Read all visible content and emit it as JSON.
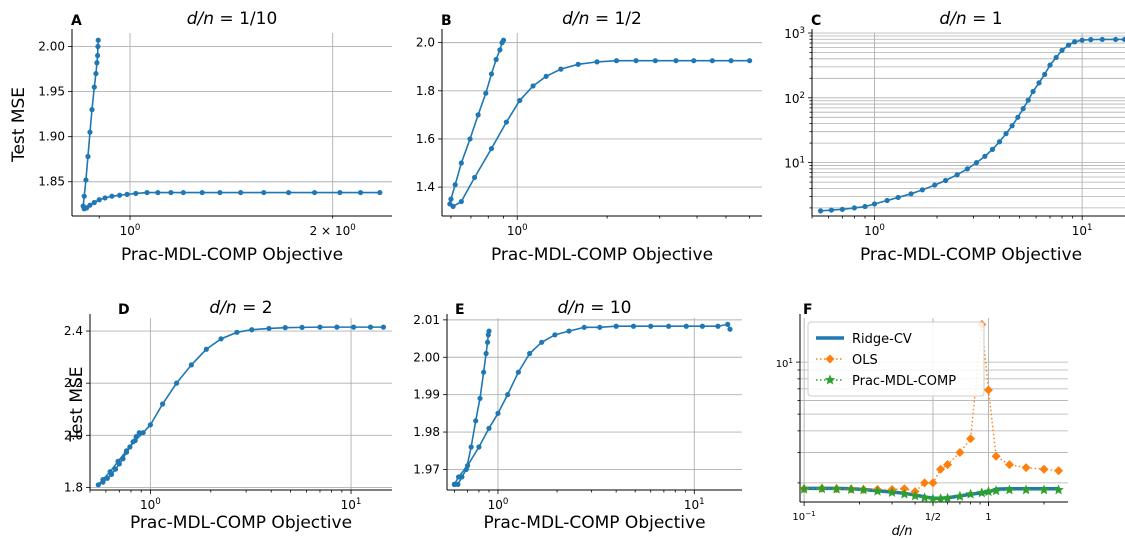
{
  "colors": {
    "blue": "#1f77b4",
    "orange": "#ff7f0e",
    "green": "#2ca02c",
    "grid": "#b0b0b0"
  },
  "chart_data": [
    {
      "panel": "A",
      "type": "line",
      "xscale": "log",
      "yscale": "linear",
      "title_prefix": "d/n",
      "title_suffix": " = 1/10",
      "xlabel": "Prac-MDL-COMP Objective",
      "ylabel": "Test MSE",
      "xlim": [
        0.82,
        2.45
      ],
      "ylim": [
        1.812,
        2.015
      ],
      "xticks": [
        {
          "v": 1,
          "b": "10",
          "e": "0"
        },
        {
          "v": 2,
          "pre": "2 × ",
          "b": "10",
          "e": "0"
        }
      ],
      "yticks": [
        1.85,
        1.9,
        1.95,
        2.0
      ],
      "ytick_labels": [
        "1.85",
        "1.90",
        "1.95",
        "2.00"
      ],
      "grid": true,
      "series": [
        {
          "x": [
            0.897,
            0.896,
            0.895,
            0.893,
            0.89,
            0.885,
            0.878,
            0.872,
            0.866,
            0.86,
            0.855,
            0.852,
            0.855,
            0.862,
            0.872,
            0.885,
            0.9,
            0.918,
            0.94,
            0.965,
            0.99,
            1.02,
            1.06,
            1.1,
            1.15,
            1.2,
            1.28,
            1.36,
            1.46,
            1.58,
            1.72,
            1.88,
            2.05,
            2.2,
            2.35
          ],
          "y": [
            2.007,
            2.0,
            1.99,
            1.982,
            1.97,
            1.955,
            1.93,
            1.905,
            1.878,
            1.852,
            1.834,
            1.823,
            1.82,
            1.821,
            1.824,
            1.827,
            1.83,
            1.832,
            1.834,
            1.835,
            1.836,
            1.837,
            1.838,
            1.838,
            1.838,
            1.838,
            1.838,
            1.838,
            1.838,
            1.838,
            1.838,
            1.838,
            1.838,
            1.838,
            1.838
          ]
        }
      ]
    },
    {
      "panel": "B",
      "type": "line",
      "xscale": "log",
      "yscale": "linear",
      "title_prefix": "d/n",
      "title_suffix": " = 1/2",
      "xlabel": "Prac-MDL-COMP Objective",
      "xlim": [
        0.56,
        6.6
      ],
      "ylim": [
        1.28,
        2.04
      ],
      "xticks": [
        {
          "v": 1,
          "b": "10",
          "e": "0"
        }
      ],
      "yticks": [
        1.4,
        1.6,
        1.8,
        2.0
      ],
      "ytick_labels": [
        "1.4",
        "1.6",
        "1.8",
        "2.0"
      ],
      "grid": true,
      "series": [
        {
          "x": [
            0.9,
            0.89,
            0.875,
            0.85,
            0.82,
            0.785,
            0.74,
            0.695,
            0.65,
            0.62,
            0.6,
            0.595,
            0.61,
            0.65,
            0.72,
            0.82,
            0.92,
            1.02,
            1.13,
            1.25,
            1.4,
            1.6,
            1.85,
            2.15,
            2.5,
            2.9,
            3.4,
            3.9,
            4.5,
            5.2,
            6.0
          ],
          "y": [
            2.01,
            2.0,
            1.97,
            1.93,
            1.87,
            1.79,
            1.7,
            1.6,
            1.5,
            1.41,
            1.35,
            1.33,
            1.32,
            1.34,
            1.44,
            1.56,
            1.67,
            1.76,
            1.82,
            1.86,
            1.89,
            1.91,
            1.92,
            1.925,
            1.925,
            1.925,
            1.925,
            1.925,
            1.925,
            1.925,
            1.925
          ]
        }
      ]
    },
    {
      "panel": "C",
      "type": "line",
      "xscale": "log",
      "yscale": "log",
      "title_prefix": "d/n",
      "title_suffix": " = 1",
      "xlabel": "Prac-MDL-COMP Objective",
      "xlim": [
        0.5,
        17
      ],
      "ylim": [
        1.5,
        1000
      ],
      "xticks": [
        {
          "v": 1,
          "b": "10",
          "e": "0"
        },
        {
          "v": 10,
          "b": "10",
          "e": "1"
        }
      ],
      "yticks_log": [
        {
          "v": 10,
          "b": "10",
          "e": "1"
        },
        {
          "v": 100,
          "b": "10",
          "e": "2"
        },
        {
          "v": 1000,
          "b": "10",
          "e": "3"
        }
      ],
      "grid": true,
      "series": [
        {
          "x": [
            0.55,
            0.62,
            0.7,
            0.8,
            0.9,
            1.0,
            1.15,
            1.3,
            1.5,
            1.7,
            1.95,
            2.2,
            2.5,
            2.8,
            3.1,
            3.4,
            3.7,
            4.0,
            4.3,
            4.6,
            4.9,
            5.2,
            5.5,
            5.8,
            6.2,
            6.6,
            7.0,
            7.5,
            8.0,
            8.6,
            9.2,
            10.0,
            11.0,
            12.5,
            14.5,
            16.0
          ],
          "y": [
            1.8,
            1.85,
            1.9,
            2.0,
            2.1,
            2.3,
            2.6,
            2.9,
            3.3,
            3.8,
            4.5,
            5.3,
            6.5,
            8.0,
            10.0,
            12.5,
            16.0,
            21.0,
            28.0,
            37.0,
            50.0,
            68.0,
            92.0,
            125.0,
            170.0,
            230.0,
            320.0,
            420.0,
            540.0,
            650.0,
            730.0,
            775.0,
            790.0,
            795.0,
            795.0,
            795.0
          ]
        }
      ]
    },
    {
      "panel": "D",
      "type": "line",
      "xscale": "log",
      "yscale": "linear",
      "title_prefix": "d/n",
      "title_suffix": " = 2",
      "xlabel": "Prac-MDL-COMP Objective",
      "ylabel": "Test MSE",
      "xlim": [
        0.5,
        16
      ],
      "ylim": [
        1.79,
        2.45
      ],
      "xticks": [
        {
          "v": 1,
          "b": "10",
          "e": "0"
        },
        {
          "v": 10,
          "b": "10",
          "e": "1"
        }
      ],
      "yticks": [
        1.8,
        2.0,
        2.2,
        2.4
      ],
      "ytick_labels": [
        "1.8",
        "2.0",
        "2.2",
        "2.4"
      ],
      "grid": true,
      "series": [
        {
          "x": [
            0.88,
            0.85,
            0.82,
            0.79,
            0.76,
            0.73,
            0.7,
            0.67,
            0.64,
            0.61,
            0.58,
            0.55,
            0.58,
            0.63,
            0.69,
            0.76,
            0.84,
            0.92,
            1.0,
            1.15,
            1.35,
            1.6,
            1.9,
            2.25,
            2.7,
            3.2,
            3.9,
            4.7,
            5.7,
            7.0,
            8.5,
            10.3,
            12.5,
            14.5
          ],
          "y": [
            2.01,
            1.995,
            1.975,
            1.955,
            1.935,
            1.91,
            1.89,
            1.87,
            1.85,
            1.835,
            1.82,
            1.81,
            1.83,
            1.86,
            1.9,
            1.94,
            1.98,
            2.01,
            2.04,
            2.12,
            2.2,
            2.27,
            2.33,
            2.37,
            2.395,
            2.405,
            2.41,
            2.413,
            2.414,
            2.415,
            2.415,
            2.415,
            2.415,
            2.415
          ]
        }
      ]
    },
    {
      "panel": "E",
      "type": "line",
      "xscale": "log",
      "yscale": "linear",
      "title_prefix": "d/n",
      "title_suffix": " = 10",
      "xlabel": "Prac-MDL-COMP Objective",
      "xlim": [
        0.55,
        17.5
      ],
      "ylim": [
        1.9645,
        2.0105
      ],
      "xticks": [
        {
          "v": 1,
          "b": "10",
          "e": "0"
        },
        {
          "v": 10,
          "b": "10",
          "e": "1"
        }
      ],
      "yticks": [
        1.97,
        1.98,
        1.99,
        2.0,
        2.01
      ],
      "ytick_labels": [
        "1.97",
        "1.98",
        "1.99",
        "2.00",
        "2.01"
      ],
      "grid": true,
      "series": [
        {
          "x": [
            0.9,
            0.893,
            0.885,
            0.87,
            0.845,
            0.81,
            0.77,
            0.73,
            0.69,
            0.655,
            0.625,
            0.6,
            0.6,
            0.63,
            0.7,
            0.8,
            0.9,
            1.0,
            1.12,
            1.27,
            1.45,
            1.67,
            1.95,
            2.3,
            2.75,
            3.3,
            4.0,
            4.9,
            6.0,
            7.4,
            9.1,
            11.0,
            13.2,
            14.8,
            15.2
          ],
          "y": [
            2.007,
            2.006,
            2.004,
            2.001,
            1.996,
            1.989,
            1.983,
            1.976,
            1.97,
            1.968,
            1.966,
            1.966,
            1.966,
            1.968,
            1.971,
            1.976,
            1.981,
            1.985,
            1.99,
            1.996,
            2.001,
            2.004,
            2.006,
            2.007,
            2.008,
            2.008,
            2.0083,
            2.0083,
            2.0083,
            2.0083,
            2.0083,
            2.0083,
            2.0083,
            2.0088,
            2.0075
          ]
        }
      ]
    },
    {
      "panel": "F",
      "type": "line",
      "xscale": "log",
      "yscale": "log",
      "xlabel_prefix": "d/n",
      "xlim": [
        0.095,
        2.7
      ],
      "ylim": [
        1.55,
        18
      ],
      "xticks_log": [
        {
          "v": 0.1,
          "b": "10",
          "e": "−1"
        }
      ],
      "xticks_frac": [
        {
          "v": 0.5,
          "label": "1/2"
        },
        {
          "v": 1,
          "label": "1"
        }
      ],
      "yticks_log": [
        {
          "v": 10,
          "b": "10",
          "e": "1"
        }
      ],
      "grid": true,
      "legend": "upper-left",
      "x": [
        0.1,
        0.125,
        0.15,
        0.18,
        0.21,
        0.25,
        0.3,
        0.35,
        0.4,
        0.45,
        0.5,
        0.55,
        0.6,
        0.7,
        0.8,
        0.92,
        1.0,
        1.1,
        1.3,
        1.6,
        2.0,
        2.4
      ],
      "series": [
        {
          "name": "Ridge-CV",
          "style": "solid",
          "marker": "none",
          "color": "#1f77b4",
          "values": [
            1.86,
            1.86,
            1.86,
            1.85,
            1.83,
            1.8,
            1.77,
            1.74,
            1.7,
            1.66,
            1.63,
            1.63,
            1.64,
            1.68,
            1.72,
            1.75,
            1.77,
            1.84,
            1.85,
            1.85,
            1.85,
            1.85
          ]
        },
        {
          "name": "OLS",
          "style": "dotted",
          "marker": "diamond",
          "color": "#ff7f0e",
          "values": [
            1.85,
            1.86,
            1.85,
            1.84,
            1.83,
            1.83,
            1.83,
            1.85,
            1.78,
            2.0,
            2.0,
            2.4,
            2.55,
            3.0,
            3.6,
            16.5,
            6.9,
            2.85,
            2.55,
            2.45,
            2.4,
            2.35
          ]
        },
        {
          "name": "Prac-MDL-COMP",
          "style": "dotted",
          "marker": "star",
          "color": "#2ca02c",
          "values": [
            1.84,
            1.85,
            1.84,
            1.83,
            1.82,
            1.79,
            1.76,
            1.72,
            1.68,
            1.64,
            1.61,
            1.62,
            1.63,
            1.67,
            1.72,
            1.75,
            1.78,
            1.8,
            1.82,
            1.82,
            1.82,
            1.82
          ]
        }
      ]
    }
  ]
}
